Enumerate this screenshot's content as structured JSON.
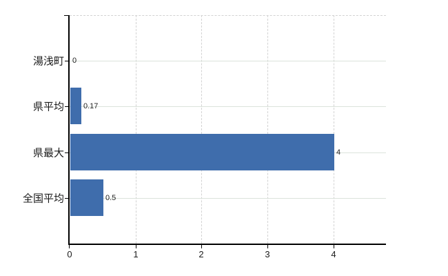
{
  "chart_data": {
    "type": "bar",
    "orientation": "horizontal",
    "title": "",
    "categories": [
      "湯浅町",
      "県平均",
      "県最大",
      "全国平均"
    ],
    "values": [
      0,
      0.17,
      4,
      0.5
    ],
    "value_labels": [
      "0",
      "0.17",
      "4",
      "0.5"
    ],
    "x_ticks": [
      0,
      1,
      2,
      3,
      4
    ],
    "x_tick_labels": [
      "0",
      "1",
      "2",
      "3",
      "4"
    ],
    "xlim": [
      0,
      4.8
    ],
    "grid": true,
    "legend": null,
    "colors": {
      "bar": "#3f6dac",
      "h_gridline": "#dbe3db",
      "v_gridline": "#d2d2d2",
      "axis": "#000000",
      "background": "#ffffff",
      "category_text": "#1a1a1a",
      "value_text": "#222222"
    }
  }
}
